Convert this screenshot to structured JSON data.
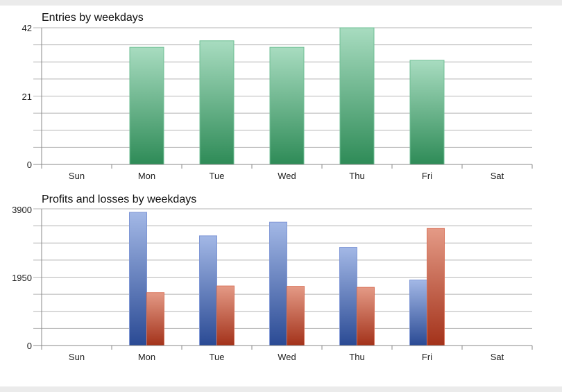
{
  "chart_data": [
    {
      "type": "bar",
      "title": "Entries by weekdays",
      "categories": [
        "Sun",
        "Mon",
        "Tue",
        "Wed",
        "Thu",
        "Fri",
        "Sat"
      ],
      "y_ticks": [
        "42",
        "21",
        "0"
      ],
      "ylim": [
        0,
        42
      ],
      "grid": true,
      "series": [
        {
          "values": [
            0,
            36,
            38,
            36,
            42,
            32,
            0
          ],
          "color": "#2e8b57"
        }
      ]
    },
    {
      "type": "bar",
      "title": "Profits and losses by weekdays",
      "categories": [
        "Sun",
        "Mon",
        "Tue",
        "Wed",
        "Thu",
        "Fri",
        "Sat"
      ],
      "y_ticks": [
        "3900",
        "1950",
        "0"
      ],
      "ylim": [
        0,
        3900
      ],
      "grid": true,
      "series": [
        {
          "values": [
            0,
            3800,
            3130,
            3520,
            2800,
            1870,
            0
          ],
          "color": "#2f4f9f"
        },
        {
          "values": [
            0,
            1510,
            1700,
            1690,
            1660,
            3340,
            0
          ],
          "color": "#b03a22"
        }
      ]
    }
  ]
}
